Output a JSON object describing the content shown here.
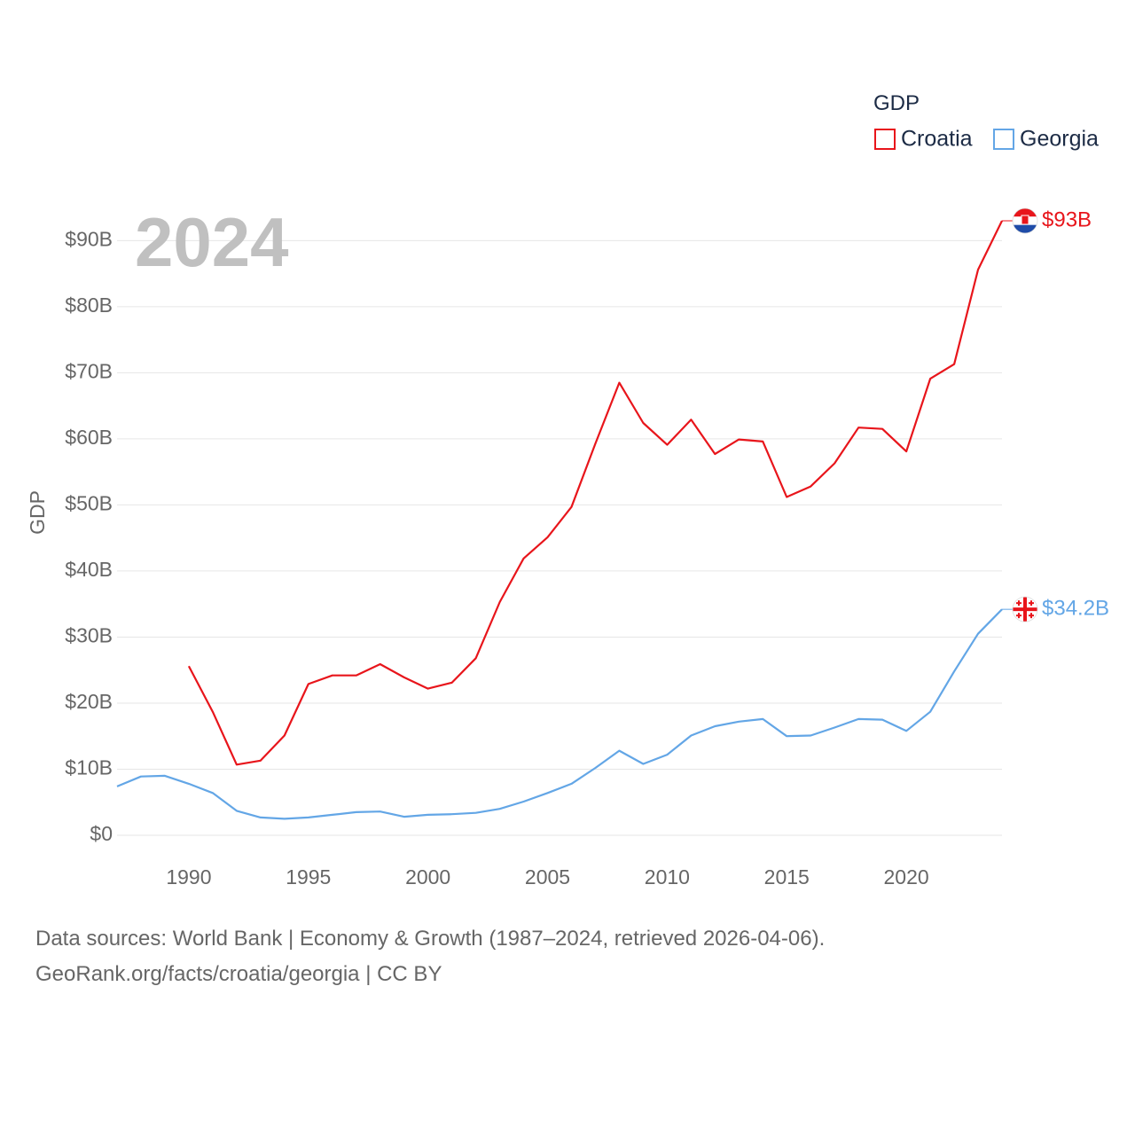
{
  "chart_data": {
    "type": "line",
    "title": "GDP",
    "year_label": "2024",
    "ylabel": "GDP",
    "xlabel": "",
    "ylim": [
      0,
      93
    ],
    "xlim": [
      1987,
      2024
    ],
    "y_ticks": [
      {
        "value": 0,
        "label": "$0"
      },
      {
        "value": 10,
        "label": "$10B"
      },
      {
        "value": 20,
        "label": "$20B"
      },
      {
        "value": 30,
        "label": "$30B"
      },
      {
        "value": 40,
        "label": "$40B"
      },
      {
        "value": 50,
        "label": "$50B"
      },
      {
        "value": 60,
        "label": "$60B"
      },
      {
        "value": 70,
        "label": "$70B"
      },
      {
        "value": 80,
        "label": "$80B"
      },
      {
        "value": 90,
        "label": "$90B"
      }
    ],
    "x_ticks": [
      1990,
      1995,
      2000,
      2005,
      2010,
      2015,
      2020
    ],
    "grid": true,
    "legend_position": "top-right",
    "series": [
      {
        "name": "Croatia",
        "color": "#e8151b",
        "end_label": "$93B",
        "flag": "croatia-flag",
        "x": [
          1990,
          1991,
          1992,
          1993,
          1994,
          1995,
          1996,
          1997,
          1998,
          1999,
          2000,
          2001,
          2002,
          2003,
          2004,
          2005,
          2006,
          2007,
          2008,
          2009,
          2010,
          2011,
          2012,
          2013,
          2014,
          2015,
          2016,
          2017,
          2018,
          2019,
          2020,
          2021,
          2022,
          2023,
          2024
        ],
        "values": [
          25.6,
          18.7,
          10.7,
          11.3,
          15.1,
          22.9,
          24.2,
          24.2,
          25.9,
          23.9,
          22.2,
          23.1,
          26.8,
          35.3,
          41.9,
          45.1,
          49.7,
          59.3,
          68.5,
          62.4,
          59.1,
          62.9,
          57.7,
          59.9,
          59.6,
          51.2,
          52.8,
          56.3,
          61.7,
          61.5,
          58.1,
          69.1,
          71.3,
          85.6,
          93.0
        ]
      },
      {
        "name": "Georgia",
        "color": "#63a6e6",
        "end_label": "$34.2B",
        "flag": "georgia-flag",
        "x": [
          1987,
          1988,
          1989,
          1990,
          1991,
          1992,
          1993,
          1994,
          1995,
          1996,
          1997,
          1998,
          1999,
          2000,
          2001,
          2002,
          2003,
          2004,
          2005,
          2006,
          2007,
          2008,
          2009,
          2010,
          2011,
          2012,
          2013,
          2014,
          2015,
          2016,
          2017,
          2018,
          2019,
          2020,
          2021,
          2022,
          2023,
          2024
        ],
        "values": [
          7.4,
          8.9,
          9.0,
          7.8,
          6.4,
          3.7,
          2.7,
          2.5,
          2.7,
          3.1,
          3.5,
          3.6,
          2.8,
          3.1,
          3.2,
          3.4,
          4.0,
          5.1,
          6.4,
          7.8,
          10.2,
          12.8,
          10.8,
          12.2,
          15.1,
          16.5,
          17.2,
          17.6,
          15.0,
          15.1,
          16.3,
          17.6,
          17.5,
          15.8,
          18.7,
          24.8,
          30.5,
          34.2
        ]
      }
    ]
  },
  "footer": {
    "line1": "Data sources: World Bank | Economy & Growth (1987–2024, retrieved 2026-04-06).",
    "line2": "GeoRank.org/facts/croatia/georgia | CC BY"
  }
}
